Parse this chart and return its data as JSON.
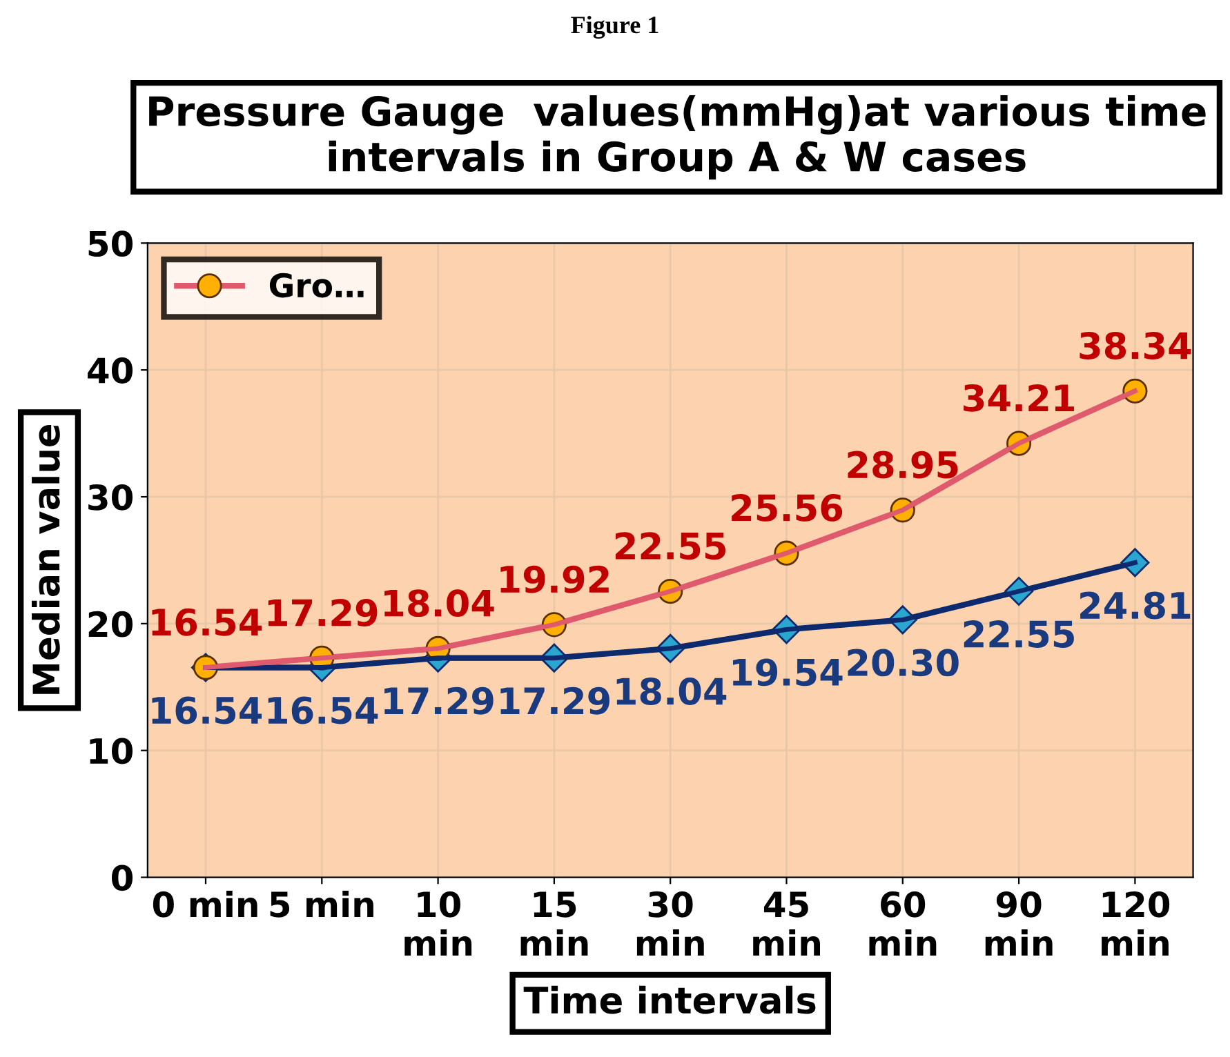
{
  "chart_data": {
    "type": "line",
    "title": "Pressure Gauge  values(mmHg)at various time intervals in Group A & W cases",
    "annotations": [
      "Figure 1"
    ],
    "xlabel": "Time intervals",
    "ylabel": "Median value",
    "categories": [
      "0 min",
      "5 min",
      "10 min",
      "15 min",
      "30 min",
      "45 min",
      "60 min",
      "90 min",
      "120 min"
    ],
    "series": [
      {
        "name": "Gro…",
        "color": "#e05a6e",
        "marker": "circle",
        "values": [
          16.54,
          17.29,
          18.04,
          19.92,
          22.55,
          25.56,
          28.95,
          34.21,
          38.34
        ],
        "value_labels": [
          "16.54",
          "17.29",
          "18.04",
          "19.92",
          "22.55",
          "25.56",
          "28.95",
          "34.21",
          "38.34"
        ]
      },
      {
        "color": "#0e2a6e",
        "marker": "diamond",
        "values": [
          16.54,
          16.54,
          17.29,
          17.29,
          18.04,
          19.54,
          20.3,
          22.55,
          24.81
        ],
        "value_labels": [
          "16.54",
          "16.54",
          "17.29",
          "17.29",
          "18.04",
          "19.54",
          "20.30",
          "22.55",
          "24.81"
        ]
      }
    ],
    "ylim": [
      0,
      50
    ],
    "yticks": [
      0,
      10,
      20,
      30,
      40,
      50
    ],
    "grid": true,
    "legend": "top left",
    "line_style": "solid"
  }
}
